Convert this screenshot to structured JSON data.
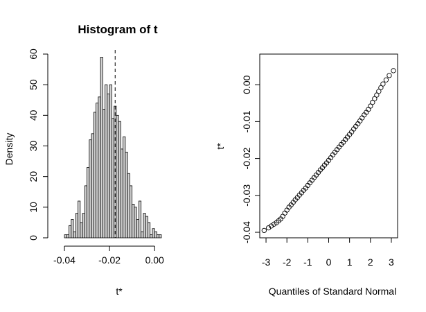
{
  "chart_data": [
    {
      "type": "bar",
      "title": "Histogram of t",
      "xlabel": "t*",
      "ylabel": "Density",
      "xlim": [
        -0.044,
        0.011
      ],
      "ylim": [
        0,
        60
      ],
      "xticks": [
        -0.04,
        -0.02,
        0.0
      ],
      "xtick_labels": [
        "-0.04",
        "-0.02",
        "0.00"
      ],
      "yticks": [
        0,
        10,
        20,
        30,
        40,
        50,
        60
      ],
      "ytick_labels": [
        "0",
        "10",
        "20",
        "30",
        "40",
        "50",
        "60"
      ],
      "bin_width": 0.001,
      "bin_starts": [
        -0.04,
        -0.039,
        -0.038,
        -0.037,
        -0.036,
        -0.035,
        -0.034,
        -0.033,
        -0.032,
        -0.031,
        -0.03,
        -0.029,
        -0.028,
        -0.027,
        -0.026,
        -0.025,
        -0.024,
        -0.023,
        -0.022,
        -0.021,
        -0.02,
        -0.019,
        -0.018,
        -0.017,
        -0.016,
        -0.015,
        -0.014,
        -0.013,
        -0.012,
        -0.011,
        -0.01,
        -0.009,
        -0.008,
        -0.007,
        -0.006,
        -0.005,
        -0.004,
        -0.003,
        -0.002,
        -0.001,
        0.0,
        0.001,
        0.002,
        0.003
      ],
      "values": [
        1,
        1,
        4,
        6,
        2,
        8,
        12,
        5,
        8,
        17,
        23,
        32,
        34,
        41,
        44,
        46,
        59,
        42,
        50,
        47,
        50,
        39,
        43,
        40,
        38,
        29,
        33,
        28,
        21,
        17,
        11,
        10,
        6,
        12,
        2,
        8,
        7,
        5,
        1,
        3,
        2,
        1,
        1,
        0
      ],
      "reference_line": {
        "x": -0.0175,
        "style": "dashed"
      },
      "bar_fill": "#d3d3d3",
      "grid": false
    },
    {
      "type": "scatter",
      "title": "",
      "xlabel": "Quantiles of Standard Normal",
      "ylabel": "t*",
      "xlim": [
        -3.3,
        3.3
      ],
      "ylim": [
        -0.0415,
        0.0083
      ],
      "xticks": [
        -3,
        -2,
        -1,
        0,
        1,
        2,
        3
      ],
      "xtick_labels": [
        "-3",
        "-2",
        "-1",
        "0",
        "1",
        "2",
        "3"
      ],
      "yticks": [
        -0.04,
        -0.03,
        -0.02,
        -0.01,
        0.0
      ],
      "ytick_labels": [
        "-0.04",
        "-0.03",
        "-0.02",
        "-0.01",
        "0.00"
      ],
      "points": [
        [
          -3.09,
          -0.0395
        ],
        [
          -2.88,
          -0.0388
        ],
        [
          -2.75,
          -0.0383
        ],
        [
          -2.62,
          -0.0378
        ],
        [
          -2.5,
          -0.0374
        ],
        [
          -2.4,
          -0.0369
        ],
        [
          -2.3,
          -0.0364
        ],
        [
          -2.2,
          -0.0357
        ],
        [
          -2.1,
          -0.0348
        ],
        [
          -2.0,
          -0.034
        ],
        [
          -1.9,
          -0.0332
        ],
        [
          -1.8,
          -0.0326
        ],
        [
          -1.7,
          -0.0319
        ],
        [
          -1.6,
          -0.0312
        ],
        [
          -1.5,
          -0.0306
        ],
        [
          -1.4,
          -0.0299
        ],
        [
          -1.3,
          -0.0293
        ],
        [
          -1.2,
          -0.0286
        ],
        [
          -1.1,
          -0.028
        ],
        [
          -1.0,
          -0.0273
        ],
        [
          -0.9,
          -0.0266
        ],
        [
          -0.8,
          -0.0259
        ],
        [
          -0.7,
          -0.0252
        ],
        [
          -0.6,
          -0.0245
        ],
        [
          -0.5,
          -0.0238
        ],
        [
          -0.4,
          -0.0231
        ],
        [
          -0.3,
          -0.0225
        ],
        [
          -0.2,
          -0.0218
        ],
        [
          -0.1,
          -0.0212
        ],
        [
          0.0,
          -0.0205
        ],
        [
          0.1,
          -0.0198
        ],
        [
          0.2,
          -0.019
        ],
        [
          0.3,
          -0.0183
        ],
        [
          0.4,
          -0.0176
        ],
        [
          0.5,
          -0.0169
        ],
        [
          0.6,
          -0.0162
        ],
        [
          0.7,
          -0.0156
        ],
        [
          0.8,
          -0.0149
        ],
        [
          0.9,
          -0.0142
        ],
        [
          1.0,
          -0.0135
        ],
        [
          1.1,
          -0.0128
        ],
        [
          1.2,
          -0.012
        ],
        [
          1.3,
          -0.0113
        ],
        [
          1.4,
          -0.0106
        ],
        [
          1.5,
          -0.0098
        ],
        [
          1.6,
          -0.009
        ],
        [
          1.7,
          -0.0082
        ],
        [
          1.8,
          -0.0075
        ],
        [
          1.9,
          -0.0067
        ],
        [
          2.0,
          -0.0058
        ],
        [
          2.1,
          -0.0048
        ],
        [
          2.2,
          -0.0038
        ],
        [
          2.3,
          -0.0028
        ],
        [
          2.4,
          -0.0018
        ],
        [
          2.5,
          -0.0008
        ],
        [
          2.6,
          0.0002
        ],
        [
          2.75,
          0.0013
        ],
        [
          2.9,
          0.0025
        ],
        [
          3.1,
          0.0038
        ]
      ],
      "grid": false
    }
  ]
}
